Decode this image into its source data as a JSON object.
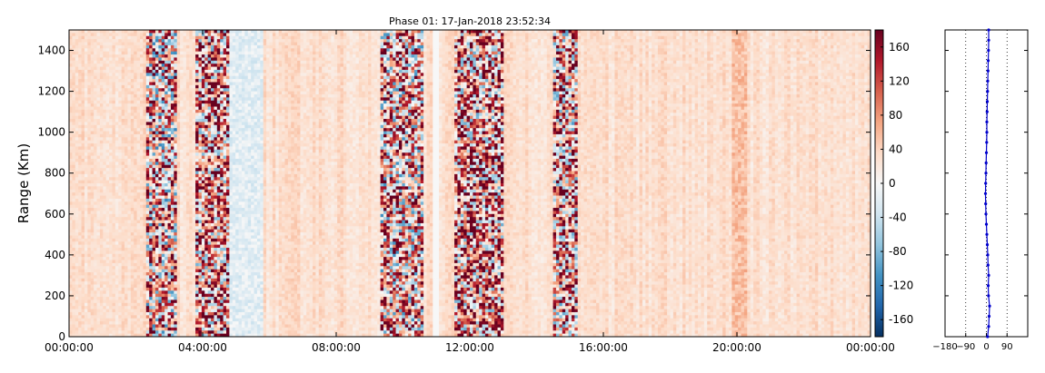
{
  "chart_data": [
    {
      "type": "heatmap",
      "title": "Phase 01: 17-Jan-2018 23:52:34",
      "ylabel": "Range (Km)",
      "xlabel": "",
      "x_ticks": [
        "00:00:00",
        "04:00:00",
        "08:00:00",
        "12:00:00",
        "16:00:00",
        "20:00:00",
        "00:00:00"
      ],
      "x_range_hours": [
        0,
        24
      ],
      "y_ticks": [
        0,
        200,
        400,
        600,
        800,
        1000,
        1200,
        1400
      ],
      "ylim": [
        0,
        1500
      ],
      "colorbar": {
        "range": [
          -180,
          180
        ],
        "ticks": [
          -160,
          -120,
          -80,
          -40,
          0,
          40,
          80,
          120,
          160
        ],
        "colormap": "RdBu_r",
        "colors": [
          "#053061",
          "#2166ac",
          "#4393c3",
          "#92c5de",
          "#d1e5f0",
          "#f7f7f7",
          "#fddbc7",
          "#f4a582",
          "#d6604d",
          "#b2182b",
          "#67001f"
        ]
      },
      "grid": false,
      "description_of_regions": [
        {
          "x_hours": [
            2.3,
            3.2
          ],
          "level": "noisy",
          "mean_phase": 40
        },
        {
          "x_hours": [
            3.8,
            4.8
          ],
          "level": "noisy",
          "mean_phase": 70
        },
        {
          "x_hours": [
            4.8,
            5.8
          ],
          "level": "light-blue",
          "mean_phase": -20
        },
        {
          "x_hours": [
            9.3,
            10.6
          ],
          "level": "noisy",
          "mean_phase": 50
        },
        {
          "x_hours": [
            11.5,
            13.0
          ],
          "level": "noisy",
          "mean_phase": 70
        },
        {
          "x_hours": [
            14.5,
            15.2
          ],
          "level": "noisy",
          "mean_phase": 60
        },
        {
          "x_hours": [
            19.8,
            20.3
          ],
          "level": "warm",
          "mean_phase": 55
        }
      ],
      "blank_columns_hours": [
        10.9,
        11.1
      ]
    },
    {
      "type": "line",
      "x_ticks": [
        -180,
        -90,
        0,
        90
      ],
      "xlim": [
        -180,
        180
      ],
      "reference_lines": [
        -90,
        0,
        90
      ],
      "ylim": [
        0,
        1500
      ],
      "series": [
        {
          "color": "#0000cc",
          "x": [
            5,
            10,
            12,
            14,
            9,
            8,
            10,
            7,
            6,
            4,
            2,
            0,
            -2,
            -3,
            -4,
            -3,
            -2,
            -1,
            0,
            1,
            2,
            2,
            3,
            4,
            5,
            6,
            7,
            8,
            9,
            10,
            10
          ],
          "y": [
            0,
            50,
            100,
            150,
            200,
            250,
            300,
            350,
            400,
            450,
            500,
            550,
            600,
            650,
            700,
            750,
            800,
            850,
            900,
            950,
            1000,
            1050,
            1100,
            1150,
            1200,
            1250,
            1300,
            1350,
            1400,
            1450,
            1500
          ]
        }
      ]
    }
  ]
}
